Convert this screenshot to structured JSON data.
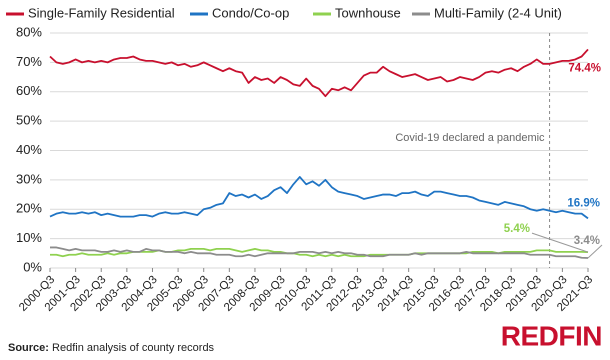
{
  "chart_data": {
    "type": "line",
    "categories": [
      "2000-Q3",
      null,
      null,
      null,
      "2001-Q3",
      null,
      null,
      null,
      "2002-Q3",
      null,
      null,
      null,
      "2003-Q3",
      null,
      null,
      null,
      "2004-Q3",
      null,
      null,
      null,
      "2005-Q3",
      null,
      null,
      null,
      "2006-Q3",
      null,
      null,
      null,
      "2007-Q3",
      null,
      null,
      null,
      "2008-Q3",
      null,
      null,
      null,
      "2009-Q3",
      null,
      null,
      null,
      "2010-Q3",
      null,
      null,
      null,
      "2011-Q3",
      null,
      null,
      null,
      "2012-Q3",
      null,
      null,
      null,
      "2013-Q3",
      null,
      null,
      null,
      "2014-Q3",
      null,
      null,
      null,
      "2015-Q3",
      null,
      null,
      null,
      "2016-Q3",
      null,
      null,
      null,
      "2017-Q3",
      null,
      null,
      null,
      "2018-Q3",
      null,
      null,
      null,
      "2019-Q3",
      null,
      null,
      null,
      "2020-Q3",
      null,
      null,
      null,
      "2021-Q3"
    ],
    "series": [
      {
        "name": "Single-Family Residential",
        "color": "#c8102e",
        "values": [
          72,
          70,
          69.5,
          70,
          71,
          70,
          70.5,
          70,
          70.5,
          70,
          71,
          71.5,
          71.5,
          72,
          71,
          70.5,
          70.5,
          70,
          69.5,
          70,
          69,
          69.5,
          68.5,
          69,
          70,
          69,
          68,
          67,
          68,
          67,
          66.5,
          63,
          65,
          64,
          64.5,
          63,
          65,
          64,
          62.5,
          62,
          64.5,
          62,
          61,
          58.5,
          61,
          60.5,
          61.5,
          60.5,
          63,
          65.5,
          66.5,
          66.5,
          68.5,
          67,
          66,
          65,
          65.5,
          66,
          65,
          64,
          64.5,
          65,
          63.5,
          64,
          65,
          64.5,
          64,
          65,
          66.5,
          67,
          66.5,
          67.5,
          68,
          67,
          68.5,
          69.5,
          71,
          69.5,
          69.5,
          70,
          70.5,
          70.5,
          71,
          72,
          74.4
        ],
        "value_labels": [
          null,
          null,
          null,
          null,
          null,
          null,
          null,
          null,
          null,
          null,
          null,
          null,
          null,
          null,
          null,
          null,
          null,
          null,
          null,
          null,
          null,
          null,
          null,
          null,
          null,
          null,
          null,
          null,
          null,
          null,
          null,
          null,
          null,
          null,
          null,
          null,
          null,
          null,
          null,
          null,
          null,
          null,
          null,
          null,
          null,
          null,
          null,
          null,
          null,
          null,
          null,
          null,
          null,
          null,
          null,
          null,
          null,
          null,
          null,
          null,
          null,
          null,
          null,
          null,
          null,
          null,
          null,
          null,
          null,
          null,
          null,
          null,
          null,
          null,
          null,
          null,
          null,
          null,
          null,
          null,
          null,
          null,
          null,
          null,
          "74.4%"
        ]
      },
      {
        "name": "Condo/Co-op",
        "color": "#1f74c4",
        "values": [
          17.5,
          18.5,
          19,
          18.5,
          18.5,
          19,
          18.5,
          19,
          18,
          18.5,
          18,
          17.5,
          17.5,
          17.5,
          18,
          18,
          17.5,
          18.5,
          19,
          18.5,
          18.5,
          19,
          18.5,
          18,
          20,
          20.5,
          21.5,
          22,
          25.5,
          24.5,
          25,
          24,
          25,
          23.5,
          24.5,
          26.5,
          27.5,
          25.5,
          28.5,
          31,
          28.5,
          29.5,
          28,
          30,
          27.5,
          26,
          25.5,
          25,
          24.5,
          23.5,
          24,
          24.5,
          25,
          25,
          24.5,
          25.5,
          25.5,
          26,
          25,
          24.5,
          26,
          26,
          25.5,
          25,
          24.5,
          24.5,
          24,
          23,
          22.5,
          22,
          21.5,
          22.5,
          22,
          21.5,
          21,
          20,
          19.5,
          20,
          19.5,
          19,
          19.5,
          19,
          18.5,
          18.5,
          16.9
        ],
        "value_labels": [
          null,
          null,
          null,
          null,
          null,
          null,
          null,
          null,
          null,
          null,
          null,
          null,
          null,
          null,
          null,
          null,
          null,
          null,
          null,
          null,
          null,
          null,
          null,
          null,
          null,
          null,
          null,
          null,
          null,
          null,
          null,
          null,
          null,
          null,
          null,
          null,
          null,
          null,
          null,
          null,
          null,
          null,
          null,
          null,
          null,
          null,
          null,
          null,
          null,
          null,
          null,
          null,
          null,
          null,
          null,
          null,
          null,
          null,
          null,
          null,
          null,
          null,
          null,
          null,
          null,
          null,
          null,
          null,
          null,
          null,
          null,
          null,
          null,
          null,
          null,
          null,
          null,
          null,
          null,
          null,
          null,
          null,
          null,
          null,
          "16.9%"
        ]
      },
      {
        "name": "Townhouse",
        "color": "#8fd14f",
        "values": [
          4.5,
          4.5,
          4,
          4.5,
          4.5,
          5,
          4.5,
          4.5,
          4.5,
          5,
          4.5,
          5,
          5,
          5.5,
          5.5,
          5.5,
          5.5,
          6,
          5.5,
          5.5,
          6,
          6,
          6.5,
          6.5,
          6.5,
          6,
          6.5,
          6.5,
          6.5,
          6,
          5.5,
          6,
          6.5,
          6,
          6,
          5.5,
          5.5,
          5,
          5,
          4.5,
          4.5,
          4,
          4.5,
          4,
          4.5,
          4,
          4.5,
          4,
          4,
          4,
          4.5,
          4.5,
          4.5,
          4.5,
          4.5,
          4.5,
          4.5,
          5,
          5,
          5,
          5,
          5,
          5,
          5,
          5,
          5,
          5.5,
          5.5,
          5.5,
          5.5,
          5,
          5.5,
          5.5,
          5.5,
          5.5,
          5.5,
          6,
          6,
          6,
          5.5,
          5.5,
          5.5,
          5.5,
          5.5,
          5.4
        ],
        "value_labels": [
          null,
          null,
          null,
          null,
          null,
          null,
          null,
          null,
          null,
          null,
          null,
          null,
          null,
          null,
          null,
          null,
          null,
          null,
          null,
          null,
          null,
          null,
          null,
          null,
          null,
          null,
          null,
          null,
          null,
          null,
          null,
          null,
          null,
          null,
          null,
          null,
          null,
          null,
          null,
          null,
          null,
          null,
          null,
          null,
          null,
          null,
          null,
          null,
          null,
          null,
          null,
          null,
          null,
          null,
          null,
          null,
          null,
          null,
          null,
          null,
          null,
          null,
          null,
          null,
          null,
          null,
          null,
          null,
          null,
          null,
          null,
          null,
          null,
          null,
          null,
          null,
          null,
          null,
          null,
          null,
          null,
          null,
          null,
          null,
          "5.4%"
        ]
      },
      {
        "name": "Multi-Family (2-4 Unit)",
        "color": "#8c8c8c",
        "values": [
          7,
          7,
          6.5,
          6,
          6.5,
          6,
          6,
          6,
          5.5,
          5.5,
          6,
          5.5,
          6,
          5.5,
          5.5,
          6.5,
          6,
          6,
          5.5,
          5.5,
          5.5,
          5,
          5.5,
          5,
          5,
          5,
          4.5,
          4.5,
          4.5,
          4,
          4,
          4.5,
          4,
          4.5,
          5,
          5,
          5,
          5,
          5,
          5.5,
          5.5,
          5.5,
          5,
          5.5,
          5,
          5.5,
          5,
          5,
          4.5,
          4.5,
          4,
          4,
          4,
          4.5,
          4.5,
          4.5,
          4.5,
          5,
          4.5,
          5,
          5,
          5,
          5,
          5,
          5,
          5.5,
          5,
          5,
          5,
          5,
          5,
          5,
          5,
          5,
          5,
          4.5,
          4.5,
          4.5,
          4.5,
          4,
          4,
          4,
          4,
          3.5,
          3.4
        ],
        "value_labels": [
          null,
          null,
          null,
          null,
          null,
          null,
          null,
          null,
          null,
          null,
          null,
          null,
          null,
          null,
          null,
          null,
          null,
          null,
          null,
          null,
          null,
          null,
          null,
          null,
          null,
          null,
          null,
          null,
          null,
          null,
          null,
          null,
          null,
          null,
          null,
          null,
          null,
          null,
          null,
          null,
          null,
          null,
          null,
          null,
          null,
          null,
          null,
          null,
          null,
          null,
          null,
          null,
          null,
          null,
          null,
          null,
          null,
          null,
          null,
          null,
          null,
          null,
          null,
          null,
          null,
          null,
          null,
          null,
          null,
          null,
          null,
          null,
          null,
          null,
          null,
          null,
          null,
          null,
          null,
          null,
          null,
          null,
          null,
          null,
          "3.4%"
        ]
      }
    ],
    "ylim": [
      0,
      80
    ],
    "yticks": [
      {
        "value": 0,
        "label": "0%"
      },
      {
        "value": 10,
        "label": "10%"
      },
      {
        "value": 20,
        "label": "20%"
      },
      {
        "value": 30,
        "label": "30%"
      },
      {
        "value": 40,
        "label": "40%"
      },
      {
        "value": 50,
        "label": "50%"
      },
      {
        "value": 60,
        "label": "60%"
      },
      {
        "value": 70,
        "label": "70%"
      },
      {
        "value": 80,
        "label": "80%"
      }
    ],
    "grid": true,
    "legend": "top",
    "annotations": [
      {
        "text": "Covid-19 declared a pandemic",
        "x": 78
      }
    ],
    "source_label": "Source:",
    "source": "Redfin analysis of county records",
    "logo": "REDFIN"
  }
}
